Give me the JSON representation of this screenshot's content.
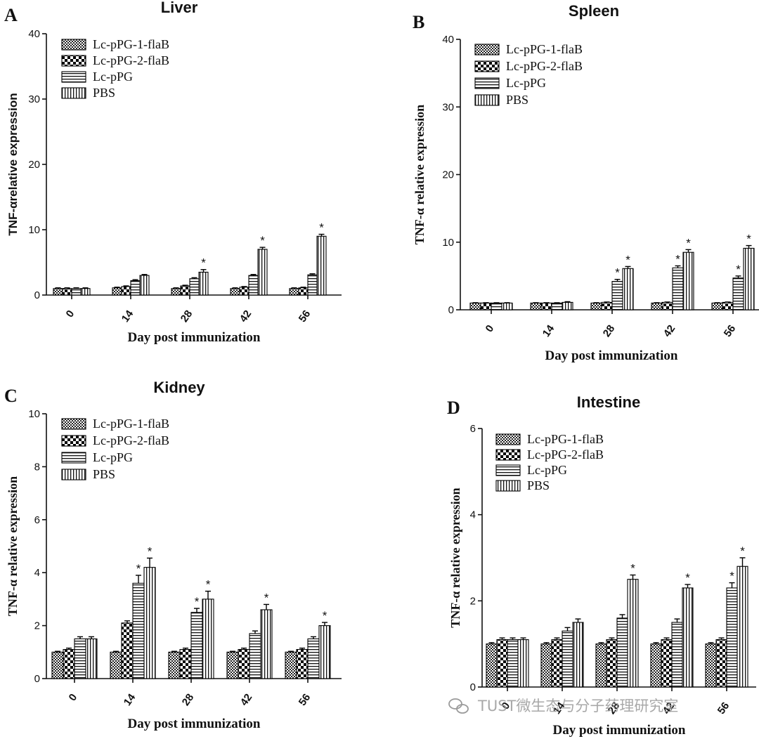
{
  "chart_data": [
    {
      "panel": "A",
      "type": "bar",
      "title": "Liver",
      "xlabel": "Day post immunization",
      "ylabel": "TNF-αrelative expression",
      "ylim": [
        0,
        40
      ],
      "yticks": [
        "0",
        "10",
        "20",
        "30",
        "40"
      ],
      "categories": [
        "0",
        "14",
        "28",
        "42",
        "56"
      ],
      "legend_position": "top-left",
      "series": [
        {
          "name": "Lc-pPG-1-flaB",
          "values": [
            1.0,
            1.1,
            1.0,
            1.0,
            1.0
          ],
          "errors": [
            0.1,
            0.1,
            0.1,
            0.1,
            0.1
          ],
          "marks": [
            "",
            "",
            "",
            "",
            ""
          ]
        },
        {
          "name": "Lc-pPG-2-flaB",
          "values": [
            1.0,
            1.3,
            1.4,
            1.2,
            1.1
          ],
          "errors": [
            0.1,
            0.1,
            0.1,
            0.1,
            0.1
          ],
          "marks": [
            "",
            "",
            "",
            "",
            ""
          ]
        },
        {
          "name": "Lc-pPG",
          "values": [
            1.0,
            2.2,
            2.5,
            3.0,
            3.1
          ],
          "errors": [
            0.1,
            0.15,
            0.15,
            0.15,
            0.15
          ],
          "marks": [
            "",
            "",
            "",
            "",
            ""
          ]
        },
        {
          "name": "PBS",
          "values": [
            1.0,
            3.0,
            3.5,
            7.0,
            9.0
          ],
          "errors": [
            0.1,
            0.15,
            0.4,
            0.3,
            0.3
          ],
          "marks": [
            "",
            "",
            "*",
            "*",
            "*"
          ]
        }
      ]
    },
    {
      "panel": "B",
      "type": "bar",
      "title": "Spleen",
      "xlabel": "Day post immunization",
      "ylabel": "TNF-α relative expression",
      "ylim": [
        0,
        40
      ],
      "yticks": [
        "0",
        "10",
        "20",
        "30",
        "40"
      ],
      "categories": [
        "0",
        "14",
        "28",
        "42",
        "56"
      ],
      "legend_position": "top-left",
      "series": [
        {
          "name": "Lc-pPG-1-flaB",
          "values": [
            1.0,
            1.0,
            1.0,
            1.0,
            1.0
          ],
          "errors": [
            0.05,
            0.05,
            0.05,
            0.05,
            0.05
          ],
          "marks": [
            "",
            "",
            "",
            "",
            ""
          ]
        },
        {
          "name": "Lc-pPG-2-flaB",
          "values": [
            1.0,
            1.0,
            1.1,
            1.1,
            1.1
          ],
          "errors": [
            0.05,
            0.05,
            0.05,
            0.05,
            0.05
          ],
          "marks": [
            "",
            "",
            "",
            "",
            ""
          ]
        },
        {
          "name": "Lc-pPG",
          "values": [
            1.0,
            1.0,
            4.2,
            6.2,
            4.7
          ],
          "errors": [
            0.05,
            0.05,
            0.3,
            0.3,
            0.3
          ],
          "marks": [
            "",
            "",
            "*",
            "*",
            "*"
          ]
        },
        {
          "name": "PBS",
          "values": [
            1.0,
            1.1,
            6.1,
            8.5,
            9.1
          ],
          "errors": [
            0.05,
            0.1,
            0.3,
            0.4,
            0.4
          ],
          "marks": [
            "",
            "",
            "*",
            "*",
            "*"
          ]
        }
      ]
    },
    {
      "panel": "C",
      "type": "bar",
      "title": "Kidney",
      "xlabel": "Day post immunization",
      "ylabel": "TNF-α relative expression",
      "ylim": [
        0,
        10
      ],
      "yticks": [
        "0",
        "2",
        "4",
        "6",
        "8",
        "10"
      ],
      "categories": [
        "0",
        "14",
        "28",
        "42",
        "56"
      ],
      "legend_position": "top-left",
      "series": [
        {
          "name": "Lc-pPG-1-flaB",
          "values": [
            1.0,
            1.0,
            1.0,
            1.0,
            1.0
          ],
          "errors": [
            0.03,
            0.03,
            0.03,
            0.03,
            0.03
          ],
          "marks": [
            "",
            "",
            "",
            "",
            ""
          ]
        },
        {
          "name": "Lc-pPG-2-flaB",
          "values": [
            1.1,
            2.1,
            1.1,
            1.1,
            1.1
          ],
          "errors": [
            0.05,
            0.08,
            0.05,
            0.05,
            0.05
          ],
          "marks": [
            "",
            "",
            "",
            "",
            ""
          ]
        },
        {
          "name": "Lc-pPG",
          "values": [
            1.5,
            3.6,
            2.5,
            1.7,
            1.5
          ],
          "errors": [
            0.08,
            0.3,
            0.15,
            0.1,
            0.08
          ],
          "marks": [
            "",
            "*",
            "*",
            "",
            ""
          ]
        },
        {
          "name": "PBS",
          "values": [
            1.5,
            4.2,
            3.0,
            2.6,
            2.0
          ],
          "errors": [
            0.08,
            0.35,
            0.3,
            0.2,
            0.12
          ],
          "marks": [
            "",
            "*",
            "*",
            "*",
            "*"
          ]
        }
      ]
    },
    {
      "panel": "D",
      "type": "bar",
      "title": "Intestine",
      "xlabel": "Day post immunization",
      "ylabel": "TNF-α relative expression",
      "ylim": [
        0,
        6
      ],
      "yticks": [
        "0",
        "2",
        "4",
        "6"
      ],
      "categories": [
        "0",
        "14",
        "28",
        "42",
        "56"
      ],
      "legend_position": "top-left",
      "series": [
        {
          "name": "Lc-pPG-1-flaB",
          "values": [
            1.0,
            1.0,
            1.0,
            1.0,
            1.0
          ],
          "errors": [
            0.03,
            0.03,
            0.03,
            0.03,
            0.03
          ],
          "marks": [
            "",
            "",
            "",
            "",
            ""
          ]
        },
        {
          "name": "Lc-pPG-2-flaB",
          "values": [
            1.1,
            1.1,
            1.1,
            1.1,
            1.1
          ],
          "errors": [
            0.04,
            0.04,
            0.04,
            0.04,
            0.04
          ],
          "marks": [
            "",
            "",
            "",
            "",
            ""
          ]
        },
        {
          "name": "Lc-pPG",
          "values": [
            1.1,
            1.3,
            1.6,
            1.5,
            2.3
          ],
          "errors": [
            0.04,
            0.08,
            0.08,
            0.08,
            0.12
          ],
          "marks": [
            "",
            "",
            "",
            "",
            "*"
          ]
        },
        {
          "name": "PBS",
          "values": [
            1.1,
            1.5,
            2.5,
            2.3,
            2.8
          ],
          "errors": [
            0.04,
            0.08,
            0.1,
            0.08,
            0.2
          ],
          "marks": [
            "",
            "",
            "*",
            "*",
            "*"
          ]
        }
      ]
    }
  ],
  "watermark": "TUST微生态与分子药理研究室"
}
